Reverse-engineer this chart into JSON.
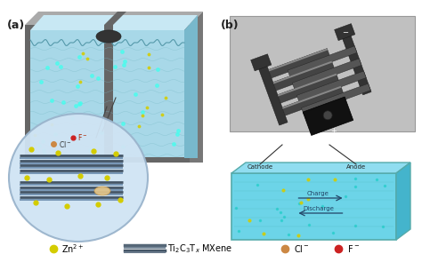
{
  "fig_width": 4.74,
  "fig_height": 2.95,
  "dpi": 100,
  "bg_color": "#ffffff",
  "label_a": "(a)",
  "label_b": "(b)",
  "tank_front_color": "#a8d8e8",
  "tank_top_color": "#c8e8f4",
  "tank_right_color": "#78b8cc",
  "tank_frame_color": "#888888",
  "tank_frame_dark": "#444444",
  "circle_fill": "#d0e4f4",
  "circle_edge": "#9ab4cc",
  "mxene_colors": [
    "#556677",
    "#778899",
    "#445566",
    "#667788"
  ],
  "zn_color": "#d4cc00",
  "cl_color": "#cc8844",
  "f_color": "#cc2222",
  "gray_bg": "#c0c0c0",
  "elec_dark": "#222222",
  "elec_mid": "#555555",
  "elec_light": "#999999",
  "electrolyte_color": "#6cd4e8",
  "electrolyte_top": "#90ddf0",
  "electrolyte_right": "#44b4cc",
  "cathode_label": "Cathode",
  "anode_label": "Anode",
  "charge_label": "Charge",
  "discharge_label": "Discharge",
  "legend_zn": "Zn$^{2+}$",
  "legend_mxene": "Ti$_2$C$_3$T$_x$ MXene",
  "legend_cl": "Cl$^-$",
  "legend_f": "F$^-$"
}
